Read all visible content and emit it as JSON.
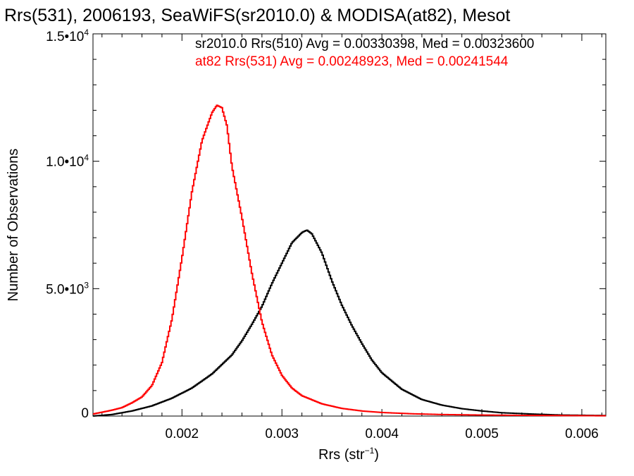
{
  "chart_data": {
    "type": "line",
    "title": "Rrs(531), 2006193, SeaWiFS(sr2010.0) & MODISA(at82), Mesot",
    "xlabel_main": "Rrs (str",
    "xlabel_sup": "−1",
    "xlabel_close": ")",
    "ylabel": "Number of Observations",
    "xlim": [
      0.00111,
      0.00624
    ],
    "ylim": [
      0,
      15000
    ],
    "x_ticks": [
      {
        "value": 0.002,
        "label": "0.002"
      },
      {
        "value": 0.003,
        "label": "0.003"
      },
      {
        "value": 0.004,
        "label": "0.004"
      },
      {
        "value": 0.005,
        "label": "0.005"
      },
      {
        "value": 0.006,
        "label": "0.006"
      }
    ],
    "y_ticks": [
      {
        "value": 0,
        "mant": "0",
        "exp": ""
      },
      {
        "value": 5000,
        "mant": "5.0•10",
        "exp": "3"
      },
      {
        "value": 10000,
        "mant": "1.0•10",
        "exp": "4"
      },
      {
        "value": 15000,
        "mant": "1.5•10",
        "exp": "4"
      }
    ],
    "series": [
      {
        "name": "sr2010.0 Rrs(510) Avg = 0.00330398, Med = 0.00323600",
        "color": "#000000",
        "x": [
          0.00111,
          0.0013,
          0.0015,
          0.0017,
          0.0019,
          0.0021,
          0.0023,
          0.0025,
          0.0026,
          0.0027,
          0.0028,
          0.0029,
          0.003,
          0.0031,
          0.0032,
          0.00325,
          0.0033,
          0.0034,
          0.0035,
          0.0036,
          0.0037,
          0.0038,
          0.0039,
          0.004,
          0.0042,
          0.0044,
          0.0046,
          0.0048,
          0.005,
          0.0052,
          0.0055,
          0.0058,
          0.00624
        ],
        "y": [
          0,
          60,
          200,
          400,
          700,
          1100,
          1650,
          2400,
          2950,
          3600,
          4300,
          5200,
          6000,
          6800,
          7200,
          7300,
          7150,
          6400,
          5300,
          4350,
          3550,
          2850,
          2200,
          1700,
          1050,
          650,
          430,
          290,
          200,
          130,
          80,
          40,
          20
        ]
      },
      {
        "name": "at82 Rrs(531) Avg = 0.00248923, Med = 0.00241544",
        "color": "#ff0000",
        "x": [
          0.00111,
          0.0012,
          0.0013,
          0.0014,
          0.0015,
          0.0016,
          0.0017,
          0.0018,
          0.0019,
          0.002,
          0.0021,
          0.0022,
          0.0023,
          0.00235,
          0.0024,
          0.00245,
          0.0025,
          0.0026,
          0.0027,
          0.0028,
          0.0029,
          0.003,
          0.0031,
          0.0032,
          0.0034,
          0.0036,
          0.0038,
          0.004,
          0.0043,
          0.0046,
          0.005,
          0.0055,
          0.006,
          0.00624
        ],
        "y": [
          80,
          150,
          230,
          330,
          520,
          750,
          1200,
          2100,
          3800,
          6200,
          8800,
          10800,
          11900,
          12200,
          12100,
          11400,
          9800,
          7800,
          5600,
          3700,
          2400,
          1600,
          1100,
          800,
          480,
          300,
          200,
          140,
          90,
          60,
          40,
          25,
          15,
          10
        ]
      }
    ],
    "grid": false,
    "legend_position": "top-right"
  }
}
